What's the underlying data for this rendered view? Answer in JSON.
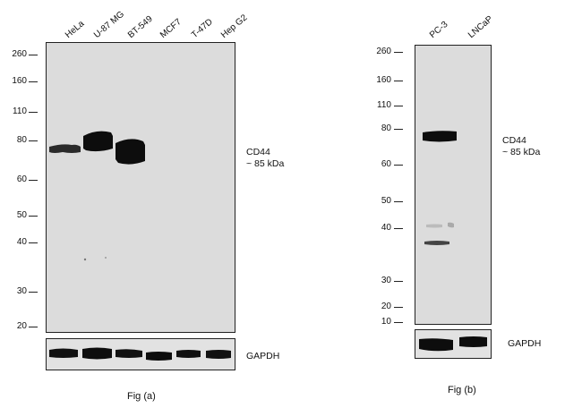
{
  "panel_a": {
    "lanes": [
      "HeLa",
      "U-87 MG",
      "BT-549",
      "MCF7",
      "T-47D",
      "Hep G2"
    ],
    "mw_markers": [
      "260",
      "160",
      "110",
      "80",
      "60",
      "50",
      "40",
      "30",
      "20"
    ],
    "target_label_line1": "CD44",
    "target_label_line2": "~ 85 kDa",
    "loading_label": "GAPDH",
    "caption": "Fig (a)"
  },
  "panel_b": {
    "lanes": [
      "PC-3",
      "LNCaP"
    ],
    "mw_markers": [
      "260",
      "160",
      "110",
      "80",
      "60",
      "50",
      "40",
      "30",
      "20",
      "10"
    ],
    "target_label_line1": "CD44",
    "target_label_line2": "~ 85 kDa",
    "loading_label": "GAPDH",
    "caption": "Fig (b)"
  },
  "colors": {
    "membrane": "#dcdcdc",
    "band": "#0d0d0d"
  }
}
